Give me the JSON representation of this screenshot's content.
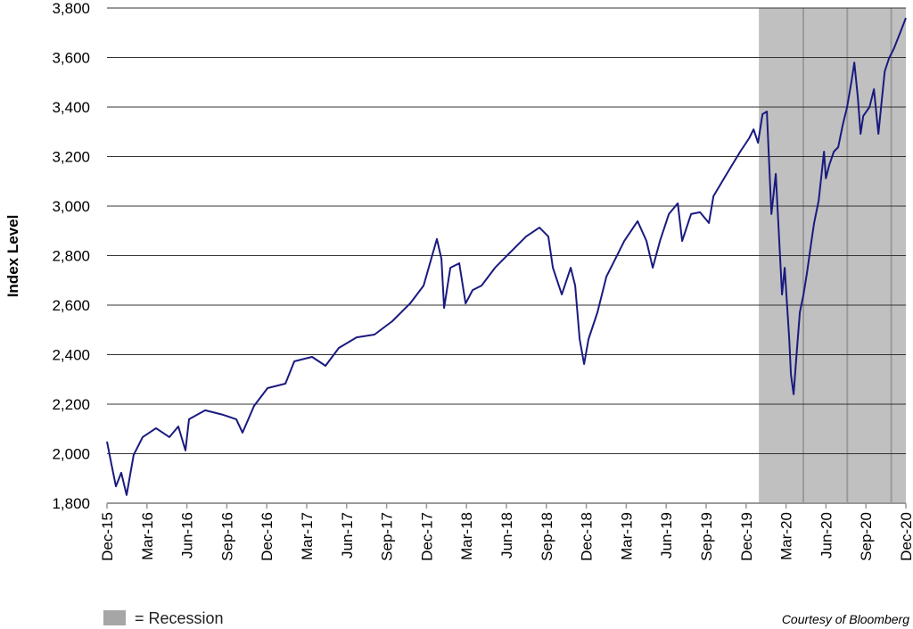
{
  "chart_data": {
    "type": "line",
    "title": "",
    "xlabel": "",
    "ylabel": "Index Level",
    "ylim": [
      1800,
      3800
    ],
    "yticks": [
      1800,
      2000,
      2200,
      2400,
      2600,
      2800,
      3000,
      3200,
      3400,
      3600,
      3800
    ],
    "ytick_labels": [
      "1,800",
      "2,000",
      "2,200",
      "2,400",
      "2,600",
      "2,800",
      "3,000",
      "3,200",
      "3,400",
      "3,600",
      "3,800"
    ],
    "x_unit": "months since Dec-15",
    "xlim": [
      0,
      60
    ],
    "xtick_labels": [
      "Dec-15",
      "Mar-16",
      "Jun-16",
      "Sep-16",
      "Dec-16",
      "Mar-17",
      "Jun-17",
      "Sep-17",
      "Dec-17",
      "Mar-18",
      "Jun-18",
      "Sep-18",
      "Dec-18",
      "Mar-19",
      "Jun-19",
      "Sep-19",
      "Dec-19",
      "Mar-20",
      "Jun-20",
      "Sep-20",
      "Dec-20"
    ],
    "grid": "horizontal",
    "line_color": "#1a1a80",
    "recession_color": "#c0c0c0",
    "recession": {
      "start": 48.96,
      "end": 60,
      "dividers": [
        52.3,
        55.6,
        58.9
      ]
    },
    "series": [
      {
        "name": "Index Level",
        "points": [
          [
            0,
            2049
          ],
          [
            0.33,
            1959
          ],
          [
            0.67,
            1868
          ],
          [
            1.07,
            1923
          ],
          [
            1.47,
            1833
          ],
          [
            2.0,
            1995
          ],
          [
            2.68,
            2067
          ],
          [
            3.68,
            2103
          ],
          [
            4.69,
            2067
          ],
          [
            5.36,
            2110
          ],
          [
            5.89,
            2013
          ],
          [
            6.16,
            2139
          ],
          [
            7.37,
            2175
          ],
          [
            8.71,
            2157
          ],
          [
            9.71,
            2139
          ],
          [
            10.18,
            2085
          ],
          [
            11.05,
            2193
          ],
          [
            12.06,
            2265
          ],
          [
            13.4,
            2283
          ],
          [
            14.07,
            2373
          ],
          [
            15.4,
            2391
          ],
          [
            16.41,
            2355
          ],
          [
            17.41,
            2427
          ],
          [
            18.75,
            2470
          ],
          [
            20.09,
            2481
          ],
          [
            21.43,
            2535
          ],
          [
            22.77,
            2607
          ],
          [
            23.78,
            2679
          ],
          [
            24.78,
            2867
          ],
          [
            25.12,
            2787
          ],
          [
            25.32,
            2589
          ],
          [
            25.79,
            2751
          ],
          [
            26.46,
            2769
          ],
          [
            26.93,
            2607
          ],
          [
            27.46,
            2661
          ],
          [
            28.13,
            2679
          ],
          [
            29.14,
            2751
          ],
          [
            30.14,
            2805
          ],
          [
            31.48,
            2877
          ],
          [
            32.48,
            2913
          ],
          [
            33.15,
            2877
          ],
          [
            33.49,
            2751
          ],
          [
            34.16,
            2643
          ],
          [
            34.83,
            2751
          ],
          [
            35.16,
            2679
          ],
          [
            35.5,
            2463
          ],
          [
            35.83,
            2362
          ],
          [
            36.17,
            2463
          ],
          [
            36.84,
            2571
          ],
          [
            37.51,
            2715
          ],
          [
            38.18,
            2787
          ],
          [
            38.85,
            2859
          ],
          [
            39.85,
            2939
          ],
          [
            40.52,
            2859
          ],
          [
            40.99,
            2751
          ],
          [
            41.53,
            2859
          ],
          [
            42.2,
            2968
          ],
          [
            42.87,
            3011
          ],
          [
            43.2,
            2859
          ],
          [
            43.87,
            2968
          ],
          [
            44.54,
            2975
          ],
          [
            45.21,
            2932
          ],
          [
            45.55,
            3040
          ],
          [
            46.55,
            3130
          ],
          [
            47.56,
            3220
          ],
          [
            48.23,
            3274
          ],
          [
            48.56,
            3310
          ],
          [
            48.9,
            3256
          ],
          [
            49.23,
            3371
          ],
          [
            49.56,
            3382
          ],
          [
            49.9,
            2968
          ],
          [
            50.23,
            3130
          ],
          [
            50.7,
            2643
          ],
          [
            50.9,
            2751
          ],
          [
            51.24,
            2463
          ],
          [
            51.37,
            2319
          ],
          [
            51.57,
            2240
          ],
          [
            51.78,
            2391
          ],
          [
            52.04,
            2571
          ],
          [
            52.31,
            2643
          ],
          [
            52.58,
            2733
          ],
          [
            52.91,
            2859
          ],
          [
            53.11,
            2932
          ],
          [
            53.45,
            3022
          ],
          [
            53.85,
            3220
          ],
          [
            53.99,
            3112
          ],
          [
            54.25,
            3166
          ],
          [
            54.59,
            3220
          ],
          [
            54.92,
            3238
          ],
          [
            55.26,
            3328
          ],
          [
            55.59,
            3400
          ],
          [
            55.93,
            3508
          ],
          [
            56.13,
            3580
          ],
          [
            56.4,
            3436
          ],
          [
            56.6,
            3292
          ],
          [
            56.8,
            3364
          ],
          [
            57.27,
            3400
          ],
          [
            57.6,
            3472
          ],
          [
            57.94,
            3292
          ],
          [
            58.14,
            3400
          ],
          [
            58.41,
            3544
          ],
          [
            58.74,
            3598
          ],
          [
            59.08,
            3634
          ],
          [
            59.61,
            3706
          ],
          [
            60,
            3760
          ]
        ]
      }
    ],
    "legend": {
      "label": "= Recession",
      "placement": "bottom-left"
    },
    "annotation": "Courtesy of Bloomberg"
  }
}
